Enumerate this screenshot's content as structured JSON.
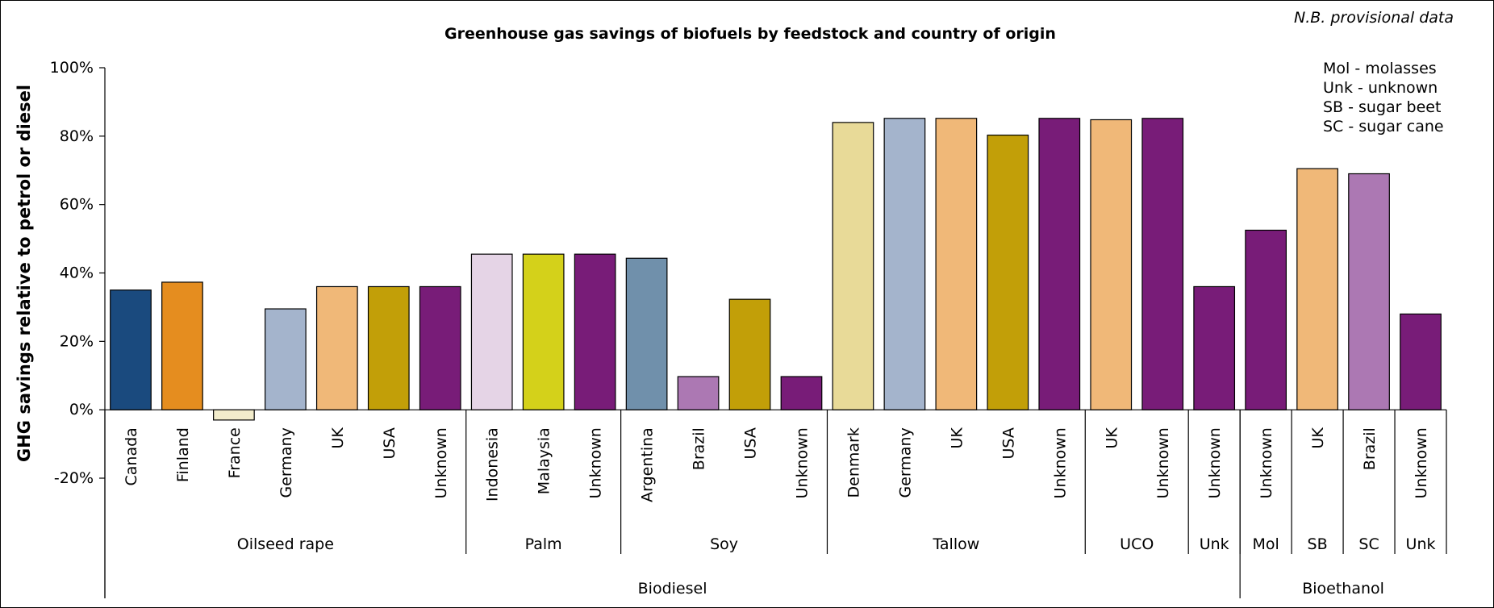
{
  "chart_data": {
    "type": "bar",
    "title": "Greenhouse gas savings of biofuels by feedstock and country of origin",
    "note": "N.B. provisional data",
    "ylabel": "GHG savings relative to petrol or diesel",
    "ylim": [
      -20,
      100
    ],
    "yticks": [
      "-20%",
      "0%",
      "20%",
      "40%",
      "60%",
      "80%",
      "100%"
    ],
    "legend_notes": [
      "Mol - molasses",
      "Unk - unknown",
      "SB - sugar beet",
      "SC - sugar cane"
    ],
    "categories": [
      "Canada",
      "Finland",
      "France",
      "Germany",
      "UK",
      "USA",
      "Unknown",
      "Indonesia",
      "Malaysia",
      "Unknown",
      "Argentina",
      "Brazil",
      "USA",
      "Unknown",
      "Denmark",
      "Germany",
      "UK",
      "USA",
      "Unknown",
      "UK",
      "Unknown",
      "Unknown",
      "Unknown",
      "UK",
      "Brazil",
      "Unknown"
    ],
    "values": [
      35,
      37.3,
      -3,
      29.5,
      36,
      36,
      36,
      45.5,
      45.5,
      45.5,
      44.3,
      9.7,
      32.3,
      9.7,
      84,
      85.2,
      85.2,
      80.3,
      85.2,
      84.8,
      85.2,
      36,
      52.5,
      70.5,
      69,
      28
    ],
    "colors": [
      "#1a4a7e",
      "#e58d1f",
      "#f2eccb",
      "#a4b4cc",
      "#f0b878",
      "#c29f08",
      "#781c78",
      "#e5d4e6",
      "#d4d11a",
      "#781c78",
      "#7090ab",
      "#ac78b3",
      "#c29f08",
      "#781c78",
      "#e8da98",
      "#a4b4cc",
      "#f0b878",
      "#c29f08",
      "#781c78",
      "#f0b878",
      "#781c78",
      "#781c78",
      "#781c78",
      "#f0b878",
      "#ac78b3",
      "#781c78"
    ],
    "feedstock_groups": [
      {
        "label": "Oilseed rape",
        "count": 7
      },
      {
        "label": "Palm",
        "count": 3
      },
      {
        "label": "Soy",
        "count": 4
      },
      {
        "label": "Tallow",
        "count": 5
      },
      {
        "label": "UCO",
        "count": 2
      },
      {
        "label": "Unk",
        "count": 1
      },
      {
        "label": "Mol",
        "count": 1
      },
      {
        "label": "SB",
        "count": 1
      },
      {
        "label": "SC",
        "count": 1
      },
      {
        "label": "Unk",
        "count": 1
      }
    ],
    "fuel_groups": [
      {
        "label": "Biodiesel",
        "count": 22
      },
      {
        "label": "Bioethanol",
        "count": 4
      }
    ],
    "grid": false,
    "legend_position": "top-right"
  }
}
